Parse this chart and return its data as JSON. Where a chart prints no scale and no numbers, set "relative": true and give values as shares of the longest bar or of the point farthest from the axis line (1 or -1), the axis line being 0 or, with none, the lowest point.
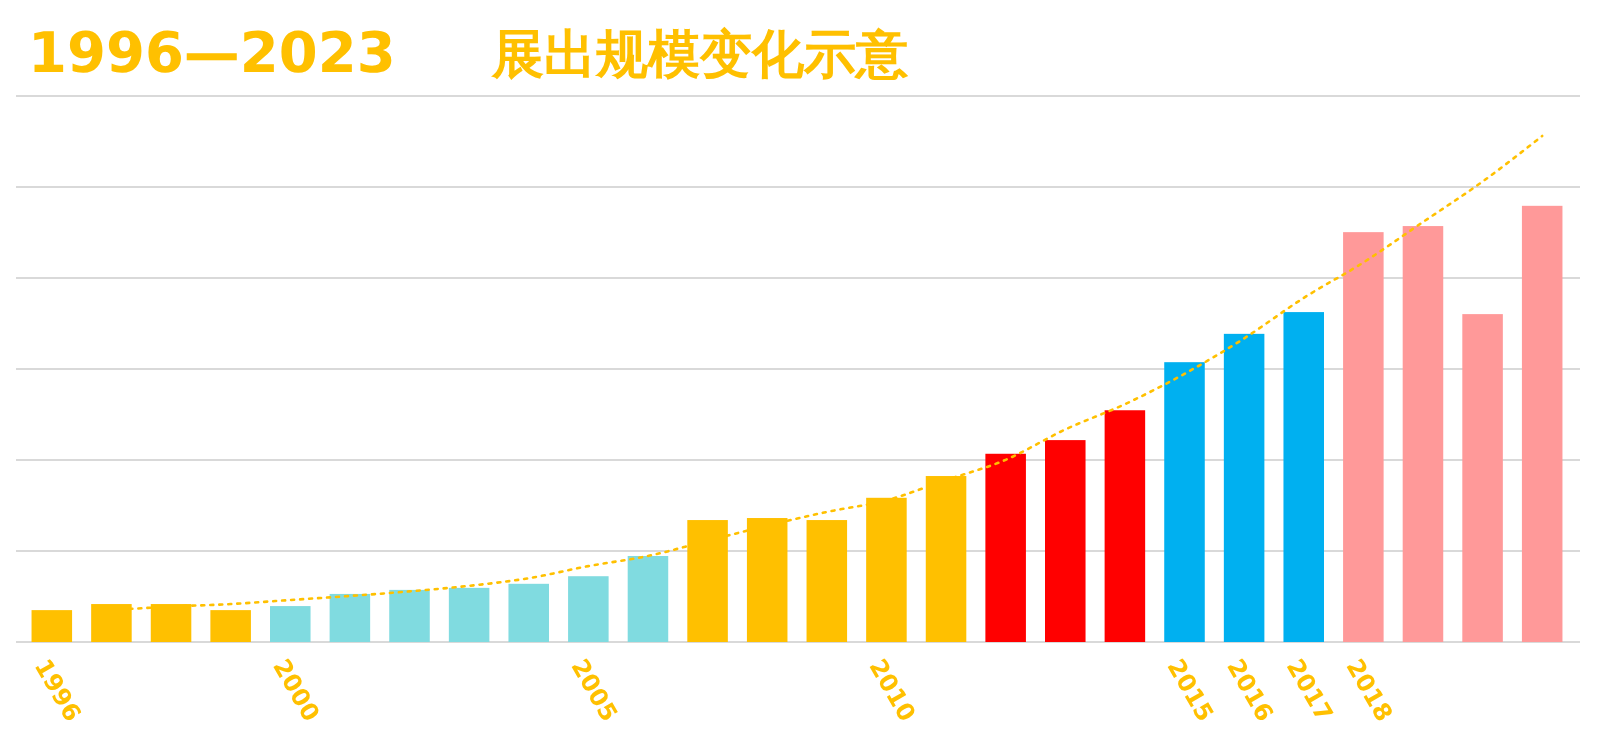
{
  "chart_data": {
    "type": "bar",
    "title": "1996—2023",
    "subtitle": "展出规模变化示意",
    "relative": true,
    "grid": "y",
    "categories": [
      "1996",
      null,
      null,
      null,
      "2000",
      null,
      null,
      null,
      null,
      "2005",
      null,
      null,
      null,
      null,
      "2010",
      null,
      null,
      null,
      null,
      "2015",
      "2016",
      "2017",
      "2018",
      null,
      null,
      null
    ],
    "series": [
      {
        "colors": [
          "#ffc000",
          "#ffc000",
          "#ffc000",
          "#ffc000",
          "#80dbe0",
          "#80dbe0",
          "#80dbe0",
          "#80dbe0",
          "#80dbe0",
          "#80dbe0",
          "#80dbe0",
          "#ffc000",
          "#ffc000",
          "#ffc000",
          "#ffc000",
          "#ffc000",
          "#ff0000",
          "#ff0000",
          "#ff0000",
          "#00b0f0",
          "#00b0f0",
          "#00b0f0",
          "#ff9999",
          "#ff9999",
          "#ff9999",
          "#ff9999"
        ],
        "values": [
          0.063,
          0.075,
          0.075,
          0.063,
          0.071,
          0.095,
          0.103,
          0.107,
          0.115,
          0.13,
          0.17,
          0.241,
          0.245,
          0.241,
          0.285,
          0.328,
          0.372,
          0.399,
          0.458,
          0.553,
          0.609,
          0.652,
          0.81,
          0.822,
          0.648,
          0.862
        ]
      },
      {
        "type": "line",
        "color": "#ffc000",
        "line_style": "dotted",
        "marker": "none",
        "values": [
          null,
          0.063,
          0.07,
          0.075,
          0.083,
          0.091,
          0.1,
          0.111,
          0.126,
          0.15,
          0.17,
          0.2,
          0.23,
          0.257,
          0.28,
          0.32,
          0.36,
          0.42,
          0.47,
          0.53,
          0.6,
          0.68,
          0.75,
          0.83,
          0.91,
          1.0
        ]
      }
    ]
  }
}
